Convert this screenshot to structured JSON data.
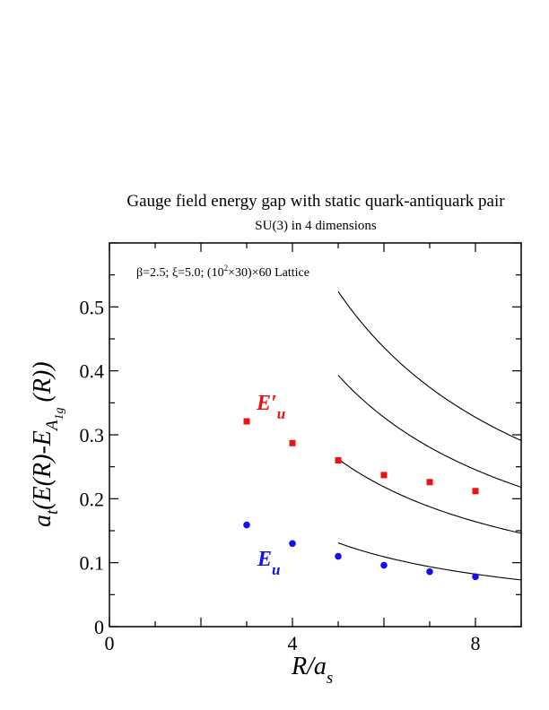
{
  "chart_data": {
    "type": "scatter",
    "title": "Gauge field energy gap with static quark-antiquark pair",
    "subtitle": "SU(3) in 4 dimensions",
    "annotation": {
      "pre": "β=2.5;  ξ=5.0; (10",
      "sup": "2",
      "post": "×30)×60 Lattice"
    },
    "xlabel": {
      "main": "R/a",
      "sub": "s"
    },
    "ylabel": {
      "main": "a",
      "sub": "t",
      "body": "(E(R)-E",
      "sub2": "A",
      "sub3": "1g",
      "end": "(R))"
    },
    "xlim": [
      0,
      9
    ],
    "ylim": [
      0,
      0.6
    ],
    "x_ticks": [
      0,
      4,
      8
    ],
    "x_tick_labels": [
      "0",
      "4",
      "8"
    ],
    "y_ticks": [
      0,
      0.1,
      0.2,
      0.3,
      0.4,
      0.5
    ],
    "y_tick_labels": [
      "0",
      "0.1",
      "0.2",
      "0.3",
      "0.4",
      "0.5"
    ],
    "grid": false,
    "series": [
      {
        "name": "E′u",
        "label_main": "E′",
        "label_sub": "u",
        "color": "#ee1111",
        "marker": "square",
        "x": [
          3,
          4,
          5,
          6,
          7,
          8
        ],
        "y": [
          0.321,
          0.287,
          0.26,
          0.237,
          0.226,
          0.212
        ]
      },
      {
        "name": "Eu",
        "label_main": "E",
        "label_sub": "u",
        "color": "#1111ee",
        "marker": "circle",
        "x": [
          3,
          4,
          5,
          6,
          7,
          8
        ],
        "y": [
          0.159,
          0.13,
          0.11,
          0.096,
          0.086,
          0.078
        ]
      }
    ],
    "curves": [
      {
        "color": "#000000",
        "x_range": [
          5,
          9
        ],
        "values_at_x": {
          "5": 0.131,
          "9": 0.073
        }
      },
      {
        "color": "#000000",
        "x_range": [
          5,
          9
        ],
        "values_at_x": {
          "5": 0.262,
          "9": 0.146
        }
      },
      {
        "color": "#000000",
        "x_range": [
          5,
          9
        ],
        "values_at_x": {
          "5": 0.393,
          "9": 0.218
        }
      },
      {
        "color": "#000000",
        "x_range": [
          5,
          9
        ],
        "values_at_x": {
          "5": 0.524,
          "9": 0.291
        }
      }
    ]
  }
}
